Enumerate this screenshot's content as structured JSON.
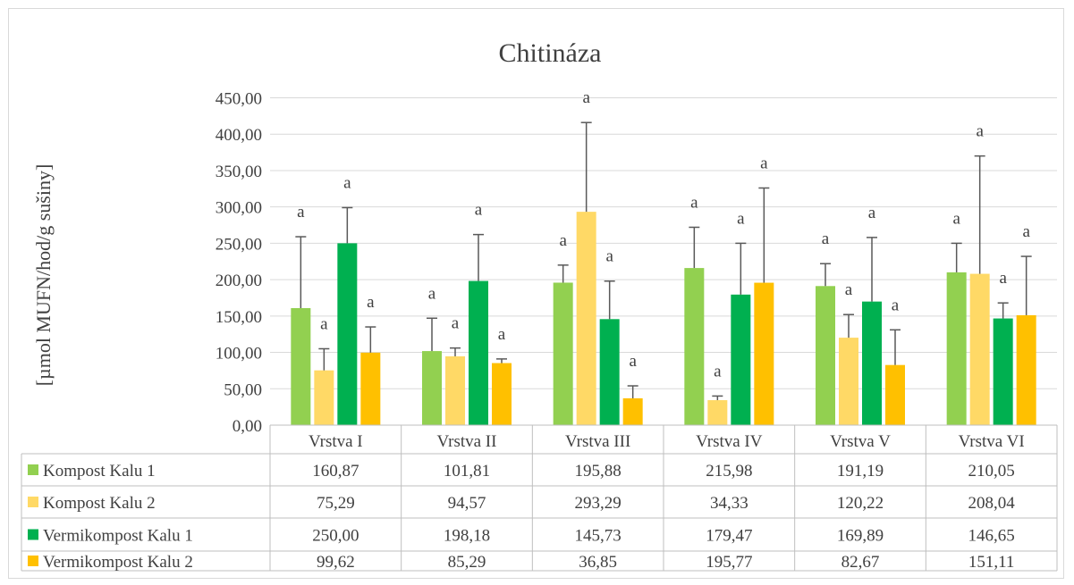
{
  "chart_data": {
    "type": "bar",
    "title": "Chitináza",
    "ylabel": "[µmol MUFN/hod/g sušiny]",
    "xlabel": "",
    "ylim": [
      0,
      450
    ],
    "yticks": [
      "0,00",
      "50,00",
      "100,00",
      "150,00",
      "200,00",
      "250,00",
      "300,00",
      "350,00",
      "400,00",
      "450,00"
    ],
    "grid": true,
    "legend": "data-table",
    "categories": [
      "Vrstva I",
      "Vrstva II",
      "Vrstva III",
      "Vrstva IV",
      "Vrstva V",
      "Vrstva VI"
    ],
    "series": [
      {
        "name": "Kompost Kalu 1",
        "color": "#92d050",
        "values": [
          160.87,
          101.81,
          195.88,
          215.98,
          191.19,
          210.05
        ],
        "labels": [
          "160,87",
          "101,81",
          "195,88",
          "215,98",
          "191,19",
          "210,05"
        ],
        "error_top": [
          259,
          147,
          220,
          272,
          222,
          250
        ],
        "letters": [
          "a",
          "a",
          "a",
          "a",
          "a",
          "a"
        ]
      },
      {
        "name": "Kompost Kalu 2",
        "color": "#ffd966",
        "values": [
          75.29,
          94.57,
          293.29,
          34.33,
          120.22,
          208.04
        ],
        "labels": [
          "75,29",
          "94,57",
          "293,29",
          "34,33",
          "120,22",
          "208,04"
        ],
        "error_top": [
          105,
          106,
          416,
          40,
          152,
          370
        ],
        "letters": [
          "a",
          "a",
          "a",
          "a",
          "a",
          "a"
        ]
      },
      {
        "name": "Vermikompost Kalu 1",
        "color": "#00b050",
        "values": [
          250.0,
          198.18,
          145.73,
          179.47,
          169.89,
          146.65
        ],
        "labels": [
          "250,00",
          "198,18",
          "145,73",
          "179,47",
          "169,89",
          "146,65"
        ],
        "error_top": [
          299,
          262,
          198,
          250,
          258,
          168
        ],
        "letters": [
          "a",
          "a",
          "a",
          "a",
          "a",
          "a"
        ]
      },
      {
        "name": "Vermikompost Kalu 2",
        "color": "#ffc000",
        "values": [
          99.62,
          85.29,
          36.85,
          195.77,
          82.67,
          151.11
        ],
        "labels": [
          "99,62",
          "85,29",
          "36,85",
          "195,77",
          "82,67",
          "151,11"
        ],
        "error_top": [
          135,
          91,
          54,
          326,
          131,
          232
        ],
        "letters": [
          "a",
          "a",
          "a",
          "a",
          "a",
          "a"
        ]
      }
    ]
  }
}
